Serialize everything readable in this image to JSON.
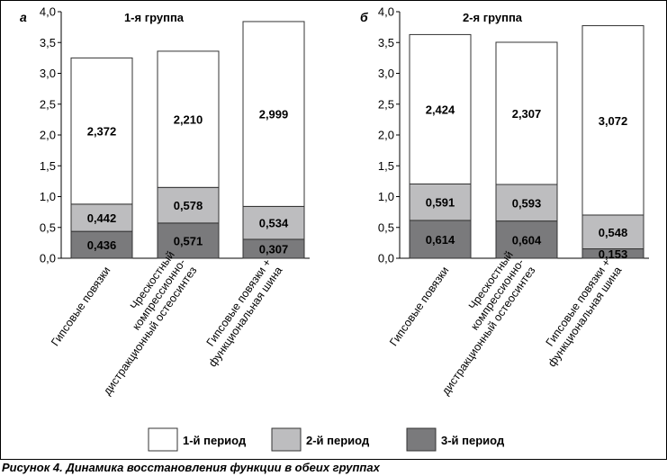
{
  "caption": "Рисунок 4. Динамика восстановления функции в обеих группах",
  "legend": {
    "items": [
      {
        "label": "1-й период",
        "color": "#ffffff"
      },
      {
        "label": "2-й период",
        "color": "#bdbdbf"
      },
      {
        "label": "3-й период",
        "color": "#7a7a7c"
      }
    ]
  },
  "chart_data": [
    {
      "type": "bar",
      "stacked": true,
      "panel_label": "а",
      "title": "1-я группа",
      "ylim": [
        0,
        4.0
      ],
      "y_ticks": [
        "0,0",
        "0,5",
        "1,0",
        "1,5",
        "2,0",
        "2,5",
        "3,0",
        "3,5",
        "4,0"
      ],
      "categories": [
        [
          "Гипсовые повязки"
        ],
        [
          "Чрескостный",
          "компрессионно-",
          "дистракционный остеосинтез"
        ],
        [
          "Гипсовые повязки +",
          "функциональная шина"
        ]
      ],
      "series": [
        {
          "name": "3-й период",
          "values": [
            0.436,
            0.571,
            0.307
          ],
          "labels": [
            "0,436",
            "0,571",
            "0,307"
          ]
        },
        {
          "name": "2-й период",
          "values": [
            0.442,
            0.578,
            0.534
          ],
          "labels": [
            "0,442",
            "0,578",
            "0,534"
          ]
        },
        {
          "name": "1-й период",
          "values": [
            2.372,
            2.21,
            2.999
          ],
          "labels": [
            "2,372",
            "2,210",
            "2,999"
          ]
        }
      ]
    },
    {
      "type": "bar",
      "stacked": true,
      "panel_label": "б",
      "title": "2-я группа",
      "ylim": [
        0,
        4.0
      ],
      "y_ticks": [
        "0,0",
        "0,5",
        "1,0",
        "1,5",
        "2,0",
        "2,5",
        "3,0",
        "3,5",
        "4,0"
      ],
      "categories": [
        [
          "Гипсовые повязки"
        ],
        [
          "Чрескостный",
          "компрессионно-",
          "дистракционный остеосинтез"
        ],
        [
          "Гипсовые повязки +",
          "функциональная шина"
        ]
      ],
      "series": [
        {
          "name": "3-й период",
          "values": [
            0.614,
            0.604,
            0.153
          ],
          "labels": [
            "0,614",
            "0,604",
            "0,153"
          ]
        },
        {
          "name": "2-й период",
          "values": [
            0.591,
            0.593,
            0.548
          ],
          "labels": [
            "0,591",
            "0,593",
            "0,548"
          ]
        },
        {
          "name": "1-й период",
          "values": [
            2.424,
            2.307,
            3.072
          ],
          "labels": [
            "2,424",
            "2,307",
            "3,072"
          ]
        }
      ]
    }
  ]
}
